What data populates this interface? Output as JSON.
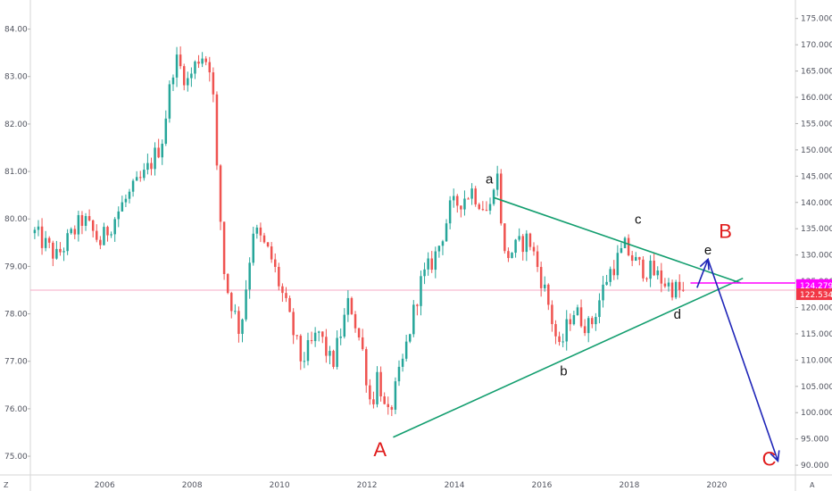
{
  "chart_data": {
    "type": "candlestick",
    "timeframe": "monthly",
    "left_axis": {
      "ticks": [
        "84.00",
        "83.00",
        "82.00",
        "81.00",
        "80.00",
        "79.00",
        "78.00",
        "77.00",
        "76.00",
        "75.00"
      ],
      "range": [
        74.7,
        84.5
      ]
    },
    "right_axis": {
      "ticks": [
        "175.000",
        "170.000",
        "165.000",
        "160.000",
        "155.000",
        "150.000",
        "145.000",
        "140.000",
        "135.000",
        "130.000",
        "125.000",
        "120.000",
        "115.000",
        "110.000",
        "105.000",
        "100.000",
        "95.000",
        "90.000"
      ],
      "range": [
        89,
        177.5
      ]
    },
    "x_axis": {
      "ticks": [
        "2006",
        "2008",
        "2010",
        "2012",
        "2014",
        "2016",
        "2018",
        "2020"
      ],
      "range": [
        2004.3,
        2021.8
      ]
    },
    "corner_labels": {
      "left": "Z",
      "right": "A"
    },
    "price_tags": [
      {
        "label": "124.279",
        "value": 124.279,
        "color": "#ff00ff"
      },
      {
        "label": "122.534",
        "value": 122.534,
        "color": "#f23645"
      }
    ],
    "current_price_line_left": 78.5,
    "colors": {
      "up": "#26a69a",
      "down": "#ef5350",
      "triangle": "#139e6f",
      "arrow": "#1f25b8",
      "wave_big": "#e01b1b",
      "horizontal": "#ff00ff"
    },
    "pivots": [
      [
        2004.4,
        79.7
      ],
      [
        2004.9,
        79.2
      ],
      [
        2005.5,
        80.0
      ],
      [
        2005.9,
        79.5
      ],
      [
        2006.4,
        80.3
      ],
      [
        2006.9,
        80.9
      ],
      [
        2007.3,
        81.6
      ],
      [
        2007.6,
        83.4
      ],
      [
        2007.9,
        82.9
      ],
      [
        2008.2,
        83.5
      ],
      [
        2008.45,
        83.2
      ],
      [
        2008.55,
        81.2
      ],
      [
        2008.75,
        78.7
      ],
      [
        2009.1,
        77.6
      ],
      [
        2009.4,
        79.8
      ],
      [
        2009.8,
        79.2
      ],
      [
        2010.1,
        78.3
      ],
      [
        2010.5,
        77.0
      ],
      [
        2010.9,
        77.6
      ],
      [
        2011.2,
        76.9
      ],
      [
        2011.6,
        78.3
      ],
      [
        2011.9,
        77.2
      ],
      [
        2012.1,
        76.0
      ],
      [
        2012.25,
        76.8
      ],
      [
        2012.45,
        75.7
      ],
      [
        2012.8,
        76.9
      ],
      [
        2013.2,
        78.6
      ],
      [
        2013.6,
        79.3
      ],
      [
        2013.9,
        80.2
      ],
      [
        2014.4,
        80.6
      ],
      [
        2014.8,
        80.1
      ],
      [
        2014.95,
        81.2
      ],
      [
        2015.15,
        79.2
      ],
      [
        2015.7,
        79.6
      ],
      [
        2016.1,
        78.4
      ],
      [
        2016.4,
        77.2
      ],
      [
        2016.7,
        78.1
      ],
      [
        2017.1,
        77.7
      ],
      [
        2017.5,
        78.8
      ],
      [
        2017.9,
        79.4
      ],
      [
        2018.2,
        79.0
      ],
      [
        2018.5,
        78.9
      ],
      [
        2018.9,
        78.6
      ],
      [
        2019.3,
        78.4
      ]
    ],
    "triangle": {
      "upper": {
        "from": [
          2014.9,
          80.45
        ],
        "to": [
          2020.55,
          78.65
        ]
      },
      "lower": {
        "from": [
          2012.6,
          75.4
        ],
        "to": [
          2020.6,
          78.75
        ]
      }
    },
    "wave_labels": [
      {
        "text": "a",
        "at": [
          2014.8,
          80.75
        ],
        "size": "small"
      },
      {
        "text": "b",
        "at": [
          2016.5,
          76.7
        ],
        "size": "small"
      },
      {
        "text": "c",
        "at": [
          2018.2,
          79.9
        ],
        "size": "small"
      },
      {
        "text": "d",
        "at": [
          2019.1,
          77.9
        ],
        "size": "small"
      },
      {
        "text": "e",
        "at": [
          2019.8,
          79.25
        ],
        "size": "small"
      },
      {
        "text": "A",
        "at": [
          2012.3,
          75.0
        ],
        "size": "big"
      },
      {
        "text": "B",
        "at": [
          2020.2,
          79.6
        ],
        "size": "big"
      },
      {
        "text": "C",
        "at": [
          2021.2,
          74.8
        ],
        "size": "big"
      }
    ],
    "arrows": [
      {
        "from": [
          2019.55,
          78.55
        ],
        "to": [
          2019.8,
          79.15
        ]
      },
      {
        "from": [
          2019.8,
          79.15
        ],
        "to": [
          2021.4,
          74.9
        ]
      }
    ],
    "horizontal_line": {
      "from": [
        2019.4,
        78.65
      ],
      "to_axis": true
    }
  }
}
